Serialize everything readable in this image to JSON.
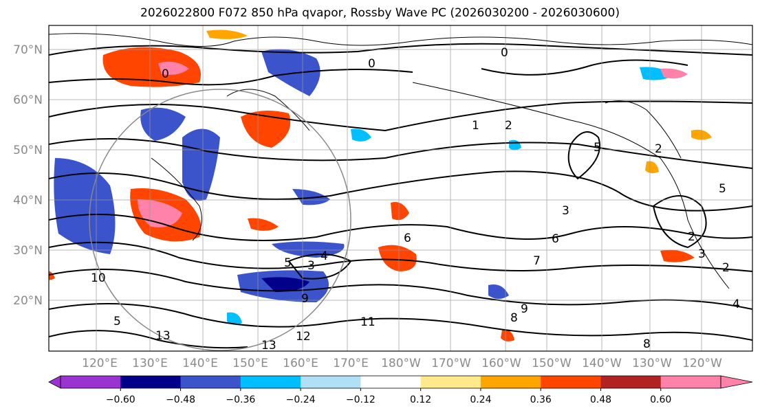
{
  "title": "2026022800 F072 850 hPa qvapor, Rossby Wave PC (2026030200 - 2026030600)",
  "lat_labels": [
    "70°N",
    "60°N",
    "50°N",
    "40°N",
    "30°N",
    "20°N"
  ],
  "lon_labels": [
    "120°E",
    "130°E",
    "140°E",
    "150°E",
    "160°E",
    "170°E",
    "180°W",
    "170°W",
    "160°W",
    "150°W",
    "140°W",
    "130°W",
    "120°W"
  ],
  "colorbar": {
    "ticks": [
      "−0.60",
      "−0.48",
      "−0.36",
      "−0.24",
      "−0.12",
      "0.12",
      "0.24",
      "0.36",
      "0.48",
      "0.60"
    ],
    "colors": [
      "#9b32d2",
      "#00008b",
      "#3b54cc",
      "#00bfff",
      "#b0e0f5",
      "#ffffff",
      "#ffe98a",
      "#ffa500",
      "#ff4500",
      "#b22222",
      "#ff82ab",
      "#ff82ab"
    ]
  },
  "contour_labels": [
    "0",
    "0",
    "0",
    "1",
    "2",
    "2",
    "2",
    "2",
    "3",
    "3",
    "3",
    "4",
    "4",
    "5",
    "5",
    "5",
    "5",
    "6",
    "6",
    "7",
    "8",
    "8",
    "9",
    "9",
    "10",
    "11",
    "12",
    "13",
    "13"
  ]
}
